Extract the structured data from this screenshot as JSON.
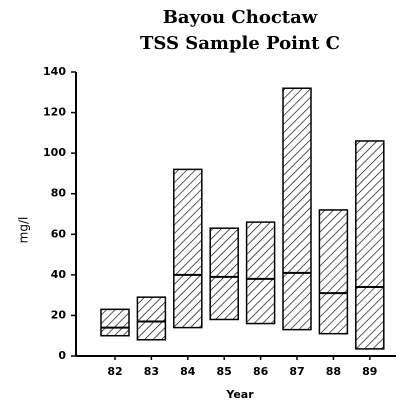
{
  "chart_data": {
    "type": "floating_bar",
    "title": "Bayou Choctaw",
    "subtitle": "TSS Sample Point C",
    "x_label": "Year",
    "y_label": "mg/l",
    "categories": [
      "82",
      "83",
      "84",
      "85",
      "86",
      "87",
      "88",
      "89"
    ],
    "low": [
      10,
      8,
      14,
      18,
      16,
      13,
      11,
      3.5
    ],
    "high": [
      23,
      29,
      92,
      63,
      66,
      132,
      72,
      106
    ],
    "median": [
      14,
      17,
      40,
      39,
      38,
      41,
      31,
      34
    ],
    "color": "#000000",
    "ylim": [
      0,
      140
    ],
    "yticks": [
      0,
      20,
      40,
      60,
      80,
      100,
      120,
      140
    ]
  }
}
